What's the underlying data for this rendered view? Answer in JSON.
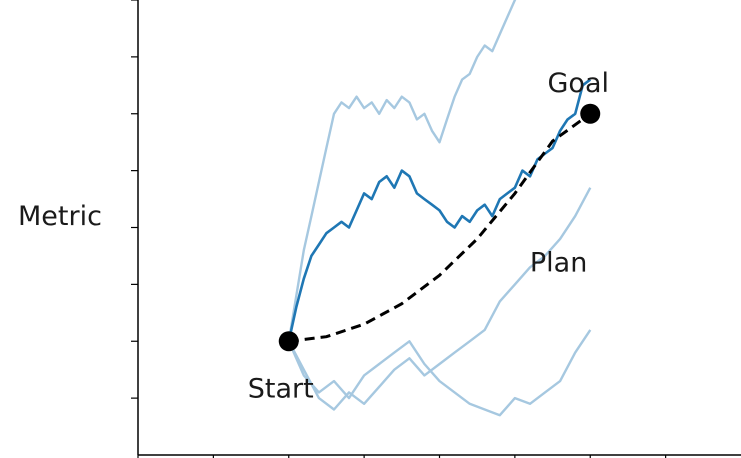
{
  "chart_data": {
    "type": "line",
    "title": "",
    "xlabel": "",
    "ylabel": "Metric",
    "xlim": [
      -2,
      6
    ],
    "ylim": [
      -1,
      3
    ],
    "grid": false,
    "x_ticks": [
      -2,
      -1,
      0,
      1,
      2,
      3,
      4,
      5
    ],
    "y_ticks": [
      -0.5,
      0,
      0.5,
      1,
      1.5,
      2,
      2.5,
      3
    ],
    "tick_labels_shown": false,
    "highlight_color": "#1f77b4",
    "faded_color": "#a6c8e0",
    "series": [
      {
        "style": "faded",
        "x": [
          0,
          0.1,
          0.2,
          0.3,
          0.4,
          0.5,
          0.6,
          0.7,
          0.8,
          0.9,
          1.0,
          1.1,
          1.2,
          1.3,
          1.4,
          1.5,
          1.6,
          1.7,
          1.8,
          1.9,
          2.0,
          2.1,
          2.2,
          2.3,
          2.4,
          2.5,
          2.6,
          2.7,
          2.8,
          2.9,
          3.0,
          3.1,
          3.2,
          3.3
        ],
        "y": [
          0,
          0.4,
          0.8,
          1.1,
          1.4,
          1.7,
          2.0,
          2.1,
          2.05,
          2.15,
          2.05,
          2.1,
          2.0,
          2.12,
          2.05,
          2.15,
          2.1,
          1.95,
          2.0,
          1.85,
          1.75,
          1.95,
          2.15,
          2.3,
          2.35,
          2.5,
          2.6,
          2.55,
          2.7,
          2.85,
          3.0,
          3.1,
          3.2,
          3.3
        ]
      },
      {
        "style": "faded",
        "x": [
          0,
          0.2,
          0.4,
          0.6,
          0.8,
          1.0,
          1.2,
          1.4,
          1.6,
          1.8,
          2.0,
          2.2,
          2.4,
          2.6,
          2.8,
          3.0,
          3.2,
          3.4,
          3.6,
          3.8,
          4.0
        ],
        "y": [
          0,
          -0.25,
          -0.5,
          -0.6,
          -0.45,
          -0.55,
          -0.4,
          -0.25,
          -0.15,
          -0.3,
          -0.2,
          -0.1,
          0.0,
          0.1,
          0.35,
          0.5,
          0.65,
          0.75,
          0.9,
          1.1,
          1.35
        ]
      },
      {
        "style": "faded",
        "x": [
          0,
          0.2,
          0.4,
          0.6,
          0.8,
          1.0,
          1.2,
          1.4,
          1.6,
          1.8,
          2.0,
          2.2,
          2.4,
          2.6,
          2.8,
          3.0,
          3.2,
          3.4,
          3.6,
          3.8,
          4.0
        ],
        "y": [
          0,
          -0.3,
          -0.45,
          -0.35,
          -0.5,
          -0.3,
          -0.2,
          -0.1,
          0.0,
          -0.2,
          -0.35,
          -0.45,
          -0.55,
          -0.6,
          -0.65,
          -0.5,
          -0.55,
          -0.45,
          -0.35,
          -0.1,
          0.1
        ]
      },
      {
        "style": "highlight",
        "x": [
          0,
          0.1,
          0.2,
          0.3,
          0.4,
          0.5,
          0.6,
          0.7,
          0.8,
          0.9,
          1.0,
          1.1,
          1.2,
          1.3,
          1.4,
          1.5,
          1.6,
          1.7,
          1.8,
          1.9,
          2.0,
          2.1,
          2.2,
          2.3,
          2.4,
          2.5,
          2.6,
          2.7,
          2.8,
          2.9,
          3.0,
          3.1,
          3.2,
          3.3,
          3.4,
          3.5,
          3.6,
          3.7,
          3.8,
          3.9,
          4.0
        ],
        "y": [
          0,
          0.3,
          0.55,
          0.75,
          0.85,
          0.95,
          1.0,
          1.05,
          1.0,
          1.15,
          1.3,
          1.25,
          1.4,
          1.45,
          1.35,
          1.5,
          1.45,
          1.3,
          1.25,
          1.2,
          1.15,
          1.05,
          1.0,
          1.1,
          1.05,
          1.15,
          1.2,
          1.1,
          1.25,
          1.3,
          1.35,
          1.5,
          1.45,
          1.6,
          1.65,
          1.7,
          1.85,
          1.95,
          2.0,
          2.25,
          2.3
        ]
      }
    ],
    "plan": {
      "x": [
        0,
        0.5,
        1.0,
        1.5,
        2.0,
        2.5,
        3.0,
        3.5,
        4.0
      ],
      "y": [
        0,
        0.04,
        0.15,
        0.33,
        0.58,
        0.9,
        1.3,
        1.76,
        2.0
      ],
      "style": "dashed",
      "color": "#000000"
    },
    "points": [
      {
        "label": "Start",
        "x": 0,
        "y": 0
      },
      {
        "label": "Goal",
        "x": 4,
        "y": 2
      }
    ],
    "annotations": [
      {
        "text": "Plan",
        "x": 3.0,
        "y": 0.7
      }
    ]
  }
}
